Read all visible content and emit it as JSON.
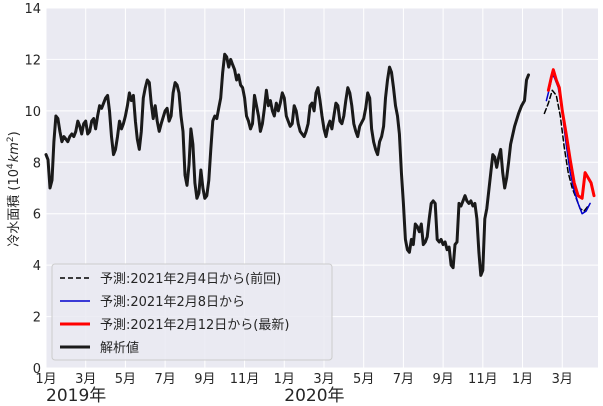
{
  "chart_data": {
    "type": "line",
    "ylabel_main": "冷水面積 (10",
    "ylabel_exp": "4",
    "ylabel_unit": "km",
    "ylabel_exp2": "2",
    "ylabel_close": ")",
    "ylim": [
      0,
      14
    ],
    "yticks": [
      "0",
      "2",
      "4",
      "6",
      "8",
      "10",
      "12",
      "14"
    ],
    "xlim_months": [
      0,
      15.5
    ],
    "xticks": [
      {
        "pos": 0,
        "label": "1月"
      },
      {
        "pos": 2,
        "label": "3月"
      },
      {
        "pos": 4,
        "label": "5月"
      },
      {
        "pos": 6,
        "label": "7月"
      },
      {
        "pos": 8,
        "label": "9月"
      },
      {
        "pos": 10,
        "label": "11月"
      },
      {
        "pos": 12,
        "label": "1月"
      },
      {
        "pos": 14,
        "label": "3月"
      },
      {
        "pos": 16,
        "label": "5月"
      },
      {
        "pos": 18,
        "label": "7月"
      },
      {
        "pos": 20,
        "label": "9月"
      },
      {
        "pos": 22,
        "label": "11月"
      },
      {
        "pos": 24,
        "label": "1月"
      },
      {
        "pos": 26,
        "label": "3月"
      }
    ],
    "year_labels": [
      {
        "pos": 0,
        "label": "2019年"
      },
      {
        "pos": 12,
        "label": "2020年"
      }
    ],
    "grid": true,
    "legend_position": "lower-left",
    "series": [
      {
        "name": "予測:2021年2月4日から(前回)",
        "color": "#000000",
        "dash": true,
        "width": 1.5,
        "points": [
          [
            25.1,
            9.9
          ],
          [
            25.3,
            10.3
          ],
          [
            25.5,
            10.8
          ],
          [
            25.7,
            10.6
          ],
          [
            25.9,
            9.8
          ],
          [
            26.1,
            8.6
          ],
          [
            26.3,
            7.6
          ],
          [
            26.5,
            7.0
          ],
          [
            26.7,
            6.6
          ],
          [
            26.9,
            6.2
          ],
          [
            27.1,
            6.1
          ],
          [
            27.3,
            6.3
          ]
        ]
      },
      {
        "name": "予測:2021年2月8日から",
        "color": "#0000cc",
        "dash": false,
        "width": 1.5,
        "points": [
          [
            25.2,
            10.4
          ],
          [
            25.4,
            11.0
          ],
          [
            25.5,
            11.4
          ],
          [
            25.6,
            11.3
          ],
          [
            25.8,
            10.9
          ],
          [
            26.0,
            9.9
          ],
          [
            26.2,
            8.7
          ],
          [
            26.4,
            7.6
          ],
          [
            26.6,
            6.9
          ],
          [
            26.8,
            6.4
          ],
          [
            27.0,
            6.0
          ],
          [
            27.2,
            6.1
          ],
          [
            27.4,
            6.4
          ]
        ]
      },
      {
        "name": "予測:2021年2月12日から(最新)",
        "color": "#ff0000",
        "dash": false,
        "width": 3,
        "points": [
          [
            25.3,
            10.8
          ],
          [
            25.45,
            11.3
          ],
          [
            25.55,
            11.6
          ],
          [
            25.7,
            11.2
          ],
          [
            25.85,
            10.9
          ],
          [
            26.0,
            10.0
          ],
          [
            26.2,
            9.1
          ],
          [
            26.4,
            8.1
          ],
          [
            26.6,
            7.2
          ],
          [
            26.8,
            6.7
          ],
          [
            27.0,
            6.6
          ],
          [
            27.15,
            7.6
          ],
          [
            27.3,
            7.4
          ],
          [
            27.45,
            7.2
          ],
          [
            27.6,
            6.7
          ]
        ]
      },
      {
        "name": "解析値",
        "color": "#1a1a1a",
        "dash": false,
        "width": 3,
        "points": [
          [
            0,
            8.3
          ],
          [
            0.1,
            8.1
          ],
          [
            0.2,
            7.0
          ],
          [
            0.3,
            7.3
          ],
          [
            0.4,
            8.8
          ],
          [
            0.5,
            9.8
          ],
          [
            0.6,
            9.7
          ],
          [
            0.7,
            9.2
          ],
          [
            0.8,
            8.8
          ],
          [
            0.9,
            9.0
          ],
          [
            1.0,
            8.9
          ],
          [
            1.1,
            8.8
          ],
          [
            1.2,
            9.0
          ],
          [
            1.3,
            9.1
          ],
          [
            1.4,
            9.0
          ],
          [
            1.5,
            9.2
          ],
          [
            1.6,
            9.6
          ],
          [
            1.7,
            9.4
          ],
          [
            1.8,
            9.1
          ],
          [
            1.9,
            9.5
          ],
          [
            2.0,
            9.6
          ],
          [
            2.1,
            9.1
          ],
          [
            2.2,
            9.2
          ],
          [
            2.3,
            9.6
          ],
          [
            2.4,
            9.7
          ],
          [
            2.5,
            9.3
          ],
          [
            2.6,
            9.8
          ],
          [
            2.7,
            10.2
          ],
          [
            2.8,
            10.1
          ],
          [
            3.0,
            10.5
          ],
          [
            3.1,
            10.6
          ],
          [
            3.2,
            10.0
          ],
          [
            3.3,
            9.0
          ],
          [
            3.4,
            8.3
          ],
          [
            3.5,
            8.5
          ],
          [
            3.6,
            9.0
          ],
          [
            3.7,
            9.6
          ],
          [
            3.8,
            9.3
          ],
          [
            3.9,
            9.5
          ],
          [
            4.0,
            9.8
          ],
          [
            4.1,
            10.2
          ],
          [
            4.2,
            10.7
          ],
          [
            4.3,
            10.4
          ],
          [
            4.4,
            10.6
          ],
          [
            4.5,
            9.6
          ],
          [
            4.6,
            8.9
          ],
          [
            4.7,
            8.5
          ],
          [
            4.8,
            9.2
          ],
          [
            4.9,
            10.5
          ],
          [
            5.0,
            10.9
          ],
          [
            5.1,
            11.2
          ],
          [
            5.2,
            11.1
          ],
          [
            5.3,
            10.3
          ],
          [
            5.4,
            9.7
          ],
          [
            5.5,
            10.2
          ],
          [
            5.6,
            9.6
          ],
          [
            5.7,
            9.2
          ],
          [
            5.8,
            9.5
          ],
          [
            6.0,
            10.0
          ],
          [
            6.1,
            10.1
          ],
          [
            6.2,
            9.6
          ],
          [
            6.3,
            9.8
          ],
          [
            6.4,
            10.7
          ],
          [
            6.5,
            11.1
          ],
          [
            6.6,
            11.0
          ],
          [
            6.7,
            10.7
          ],
          [
            6.8,
            9.8
          ],
          [
            6.9,
            9.2
          ],
          [
            7.0,
            7.5
          ],
          [
            7.1,
            7.1
          ],
          [
            7.2,
            7.9
          ],
          [
            7.3,
            9.3
          ],
          [
            7.4,
            8.7
          ],
          [
            7.5,
            7.2
          ],
          [
            7.6,
            6.6
          ],
          [
            7.7,
            6.8
          ],
          [
            7.8,
            7.7
          ],
          [
            7.9,
            7.0
          ],
          [
            8.0,
            6.6
          ],
          [
            8.1,
            6.7
          ],
          [
            8.2,
            7.3
          ],
          [
            8.3,
            8.5
          ],
          [
            8.4,
            9.6
          ],
          [
            8.5,
            9.8
          ],
          [
            8.6,
            9.7
          ],
          [
            8.7,
            10.1
          ],
          [
            8.8,
            10.5
          ],
          [
            8.9,
            11.5
          ],
          [
            9.0,
            12.2
          ],
          [
            9.1,
            12.1
          ],
          [
            9.2,
            11.7
          ],
          [
            9.3,
            12.0
          ],
          [
            9.4,
            11.8
          ],
          [
            9.5,
            11.6
          ],
          [
            9.6,
            11.2
          ],
          [
            9.7,
            11.4
          ],
          [
            9.8,
            11.0
          ],
          [
            9.9,
            10.9
          ],
          [
            10.0,
            10.5
          ],
          [
            10.1,
            9.8
          ],
          [
            10.2,
            9.6
          ],
          [
            10.3,
            9.3
          ],
          [
            10.4,
            9.5
          ],
          [
            10.5,
            10.6
          ],
          [
            10.6,
            10.2
          ],
          [
            10.7,
            9.8
          ],
          [
            10.8,
            9.2
          ],
          [
            10.9,
            9.5
          ],
          [
            11.0,
            10.1
          ],
          [
            11.1,
            10.8
          ],
          [
            11.2,
            10.2
          ],
          [
            11.3,
            10.4
          ],
          [
            11.4,
            10.0
          ],
          [
            11.5,
            9.8
          ],
          [
            11.6,
            10.3
          ],
          [
            11.7,
            10.0
          ],
          [
            11.8,
            10.3
          ],
          [
            11.9,
            10.7
          ],
          [
            12.0,
            10.5
          ],
          [
            12.1,
            9.8
          ],
          [
            12.2,
            9.6
          ],
          [
            12.3,
            9.4
          ],
          [
            12.4,
            9.5
          ],
          [
            12.5,
            10.2
          ],
          [
            12.6,
            10.0
          ],
          [
            12.7,
            9.5
          ],
          [
            12.8,
            9.2
          ],
          [
            12.9,
            9.1
          ],
          [
            13.0,
            9.0
          ],
          [
            13.1,
            9.2
          ],
          [
            13.2,
            9.5
          ],
          [
            13.3,
            10.2
          ],
          [
            13.4,
            10.3
          ],
          [
            13.5,
            10.0
          ],
          [
            13.6,
            10.7
          ],
          [
            13.7,
            10.9
          ],
          [
            13.8,
            10.4
          ],
          [
            13.9,
            9.8
          ],
          [
            14.0,
            9.3
          ],
          [
            14.1,
            9.0
          ],
          [
            14.2,
            9.4
          ],
          [
            14.3,
            9.6
          ],
          [
            14.4,
            9.3
          ],
          [
            14.5,
            9.8
          ],
          [
            14.6,
            10.3
          ],
          [
            14.7,
            10.2
          ],
          [
            14.8,
            9.6
          ],
          [
            14.9,
            9.5
          ],
          [
            15.0,
            9.8
          ],
          [
            15.1,
            10.4
          ],
          [
            15.2,
            10.9
          ],
          [
            15.3,
            10.7
          ],
          [
            15.4,
            10.2
          ],
          [
            15.5,
            9.5
          ],
          [
            15.6,
            9.2
          ],
          [
            15.7,
            9.0
          ],
          [
            15.8,
            9.4
          ],
          [
            16.0,
            9.7
          ],
          [
            16.1,
            10.1
          ],
          [
            16.2,
            10.7
          ],
          [
            16.3,
            10.5
          ],
          [
            16.4,
            9.3
          ],
          [
            16.5,
            8.8
          ],
          [
            16.6,
            8.5
          ],
          [
            16.7,
            8.3
          ],
          [
            16.8,
            8.8
          ],
          [
            16.9,
            9.0
          ],
          [
            17.0,
            9.4
          ],
          [
            17.1,
            10.5
          ],
          [
            17.2,
            11.2
          ],
          [
            17.3,
            11.7
          ],
          [
            17.4,
            11.5
          ],
          [
            17.5,
            10.9
          ],
          [
            17.6,
            10.2
          ],
          [
            17.7,
            9.8
          ],
          [
            17.8,
            9.1
          ],
          [
            17.9,
            7.6
          ],
          [
            18.0,
            6.4
          ],
          [
            18.1,
            5.0
          ],
          [
            18.2,
            4.6
          ],
          [
            18.3,
            4.5
          ],
          [
            18.4,
            5.0
          ],
          [
            18.5,
            4.8
          ],
          [
            18.6,
            5.6
          ],
          [
            18.7,
            5.5
          ],
          [
            18.8,
            5.3
          ],
          [
            18.9,
            5.6
          ],
          [
            19.0,
            4.8
          ],
          [
            19.1,
            4.9
          ],
          [
            19.2,
            5.1
          ],
          [
            19.3,
            5.8
          ],
          [
            19.4,
            6.4
          ],
          [
            19.5,
            6.5
          ],
          [
            19.6,
            6.4
          ],
          [
            19.7,
            5.0
          ],
          [
            19.8,
            4.9
          ],
          [
            19.9,
            5.0
          ],
          [
            20.0,
            4.8
          ],
          [
            20.1,
            4.9
          ],
          [
            20.2,
            4.6
          ],
          [
            20.3,
            4.7
          ],
          [
            20.4,
            4.0
          ],
          [
            20.5,
            3.9
          ],
          [
            20.6,
            4.8
          ],
          [
            20.7,
            4.9
          ],
          [
            20.8,
            6.4
          ],
          [
            20.9,
            6.3
          ],
          [
            21.0,
            6.5
          ],
          [
            21.1,
            6.7
          ],
          [
            21.2,
            6.5
          ],
          [
            21.3,
            6.4
          ],
          [
            21.4,
            6.5
          ],
          [
            21.5,
            6.3
          ],
          [
            21.6,
            6.4
          ],
          [
            21.7,
            5.8
          ],
          [
            21.8,
            4.5
          ],
          [
            21.9,
            3.6
          ],
          [
            22.0,
            3.8
          ],
          [
            22.1,
            5.8
          ],
          [
            22.2,
            6.2
          ],
          [
            22.3,
            6.9
          ],
          [
            22.4,
            7.6
          ],
          [
            22.5,
            8.3
          ],
          [
            22.6,
            8.2
          ],
          [
            22.7,
            7.8
          ],
          [
            22.8,
            8.2
          ],
          [
            22.9,
            8.5
          ],
          [
            23.0,
            7.6
          ],
          [
            23.1,
            7.0
          ],
          [
            23.2,
            7.4
          ],
          [
            23.3,
            8.0
          ],
          [
            23.4,
            8.7
          ],
          [
            23.6,
            9.4
          ],
          [
            23.8,
            9.9
          ],
          [
            23.95,
            10.2
          ],
          [
            24.1,
            10.4
          ],
          [
            24.2,
            11.2
          ],
          [
            24.3,
            11.4
          ]
        ]
      }
    ]
  }
}
